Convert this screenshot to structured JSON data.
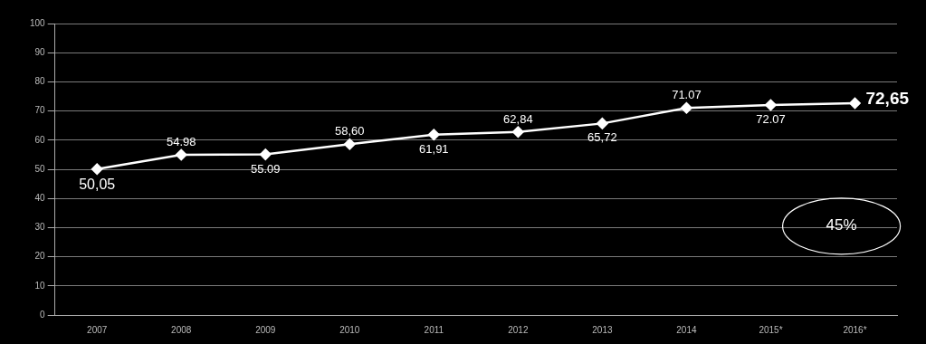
{
  "chart_data": {
    "type": "line",
    "categories": [
      "2007",
      "2008",
      "2009",
      "2010",
      "2011",
      "2012",
      "2013",
      "2014",
      "2015*",
      "2016*"
    ],
    "values": [
      50.05,
      54.98,
      55.09,
      58.6,
      61.91,
      62.84,
      65.72,
      71.07,
      72.07,
      72.65
    ],
    "value_labels": [
      "50,05",
      "54.98",
      "55.09",
      "58,60",
      "61,91",
      "62,84",
      "65,72",
      "71.07",
      "72.07",
      "72,65"
    ],
    "color": "#ffffff",
    "marker": "diamond",
    "data_labels": true,
    "annotations": [
      "45%"
    ],
    "ylim": [
      0,
      100
    ],
    "yticks": [
      0,
      10,
      20,
      30,
      40,
      50,
      60,
      70,
      80,
      90,
      100
    ],
    "grid": true
  }
}
